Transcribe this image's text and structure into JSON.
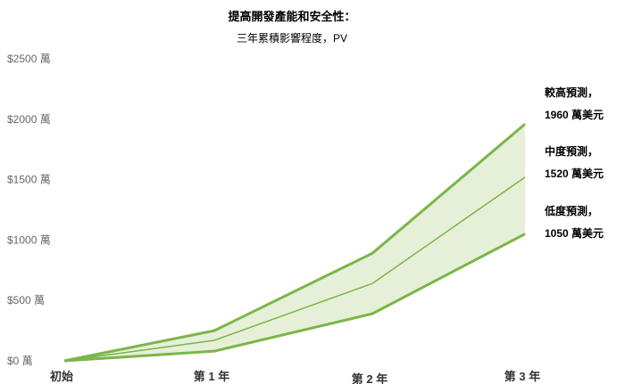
{
  "chart_data": {
    "type": "area",
    "title": "提高開發產能和安全性：",
    "subtitle": "三年累積影響程度，PV",
    "categories": [
      "初始",
      "第 1 年",
      "第 2 年",
      "第 3 年"
    ],
    "ylim": [
      0,
      2500
    ],
    "yticks": [
      {
        "value": 0,
        "label": "$0 萬"
      },
      {
        "value": 500,
        "label": "$500 萬"
      },
      {
        "value": 1000,
        "label": "$1000 萬"
      },
      {
        "value": 1500,
        "label": "$1500 萬"
      },
      {
        "value": 2000,
        "label": "$2000 萬"
      },
      {
        "value": 2500,
        "label": "$2500 萬"
      }
    ],
    "series": [
      {
        "name": "較高預測",
        "values": [
          0,
          250,
          890,
          1960
        ]
      },
      {
        "name": "中度預測",
        "values": [
          0,
          170,
          640,
          1520
        ]
      },
      {
        "name": "低度預測",
        "values": [
          0,
          80,
          390,
          1050
        ]
      }
    ],
    "annotations": [
      {
        "line1": "較高預測，",
        "line2": "1960 萬美元"
      },
      {
        "line1": "中度預測，",
        "line2": "1520 萬美元"
      },
      {
        "line1": "低度預測，",
        "line2": "1050 萬美元"
      }
    ],
    "colors": {
      "line": "#7ab648",
      "fill": "#e6f0d8"
    },
    "grid": false,
    "legend": "right annotations"
  }
}
